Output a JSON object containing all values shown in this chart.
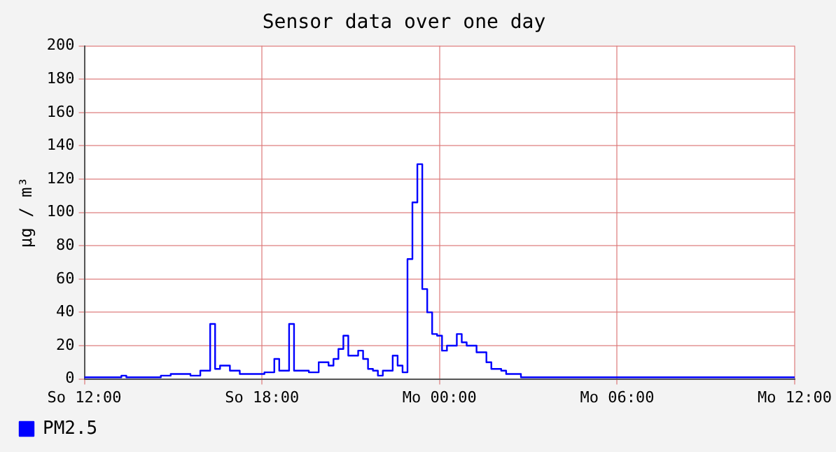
{
  "chart_data": {
    "type": "step",
    "title": "Sensor data over one day",
    "ylabel": "µg / m³",
    "categories": [
      "So 12:00",
      null,
      null,
      null,
      null,
      null,
      null,
      null,
      null,
      null,
      null,
      null,
      null,
      null,
      null,
      null,
      null,
      null,
      null,
      null,
      null,
      null,
      null,
      null,
      null,
      null,
      null,
      null,
      null,
      null,
      null,
      null,
      null,
      null,
      null,
      null,
      "So 18:00",
      null,
      null,
      null,
      null,
      null,
      null,
      null,
      null,
      null,
      null,
      null,
      null,
      null,
      null,
      null,
      null,
      null,
      null,
      null,
      null,
      null,
      null,
      null,
      null,
      null,
      null,
      null,
      null,
      null,
      null,
      null,
      null,
      null,
      null,
      null,
      "Mo 00:00",
      null,
      null,
      null,
      null,
      null,
      null,
      null,
      null,
      null,
      null,
      null,
      null,
      null,
      null,
      null,
      null,
      null,
      null,
      null,
      null,
      null,
      null,
      null,
      null,
      null,
      null,
      null,
      null,
      null,
      null,
      null,
      null,
      null,
      null,
      null,
      "Mo 06:00",
      null,
      null,
      null,
      null,
      null,
      null,
      null,
      null,
      null,
      null,
      null,
      null,
      null,
      null,
      null,
      null,
      null,
      null,
      null,
      null,
      null,
      null,
      null,
      null,
      null,
      null,
      null,
      null,
      null,
      null,
      null,
      null,
      null,
      null,
      null,
      "Mo 12:00"
    ],
    "ylim": [
      0,
      200
    ],
    "yticks": [
      0,
      20,
      40,
      60,
      80,
      100,
      120,
      140,
      160,
      180,
      200
    ],
    "grid": true,
    "legend": "bottom left",
    "marker": "none",
    "line_style": "solid",
    "series": [
      {
        "name": "PM2.5",
        "color": "#0000ff",
        "values": [
          1,
          1,
          1,
          1,
          1,
          1,
          1,
          1,
          2,
          1,
          1,
          1,
          1,
          1,
          1,
          1,
          2,
          2,
          3,
          3,
          3,
          3,
          2,
          2,
          5,
          5,
          33,
          6,
          8,
          8,
          5,
          5,
          3,
          3,
          3,
          3,
          3,
          4,
          4,
          12,
          5,
          5,
          33,
          5,
          5,
          5,
          4,
          4,
          10,
          10,
          8,
          12,
          18,
          26,
          14,
          14,
          17,
          12,
          6,
          5,
          2,
          5,
          5,
          14,
          8,
          4,
          72,
          106,
          129,
          54,
          40,
          27,
          26,
          17,
          20,
          20,
          27,
          22,
          20,
          20,
          16,
          16,
          10,
          6,
          6,
          5,
          3,
          3,
          3,
          1,
          1,
          1,
          1,
          1,
          1,
          1,
          1,
          1,
          1,
          1,
          1,
          1,
          1,
          1,
          1,
          1,
          1,
          1,
          1,
          1,
          1,
          1,
          1,
          1,
          1,
          1,
          1,
          1,
          1,
          1,
          1,
          1,
          1,
          1,
          1,
          1,
          1,
          1,
          1,
          1,
          1,
          1,
          1,
          1,
          1,
          1,
          1,
          1,
          1,
          1,
          1,
          1,
          1,
          1,
          1
        ]
      }
    ]
  }
}
